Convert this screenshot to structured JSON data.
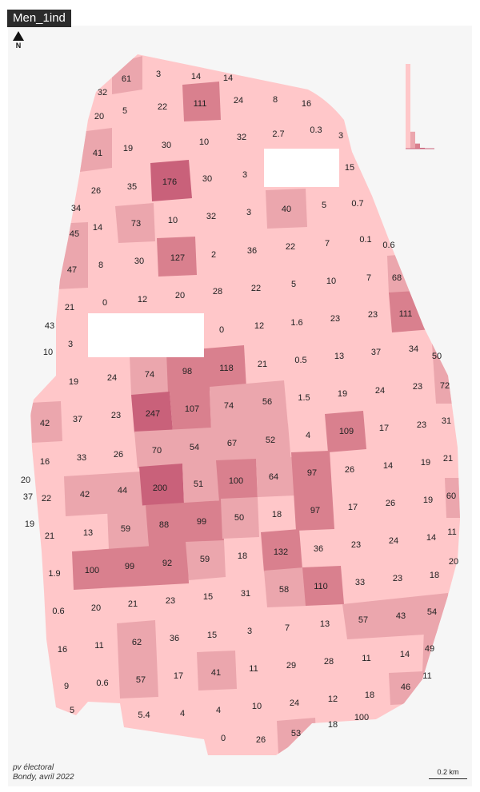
{
  "map": {
    "title": "Men_1ind",
    "north_label": "N",
    "source_line1": "pv électoral",
    "source_line2": "Bondy, avril 2022",
    "scale_label": "0.2 km",
    "colors": {
      "background": "#f6f6f6",
      "class_low": "#ffc7c9",
      "class_mid": "#eba6ad",
      "class_high": "#d9808e",
      "class_top": "#c9617a",
      "holes": "#ffffff",
      "title_bg": "#2b2b2b"
    },
    "legend_histogram": {
      "class_counts": [
        1,
        0.2,
        0.06,
        0.01
      ]
    }
  },
  "cells": [
    {
      "v": "61"
    },
    {
      "v": "3"
    },
    {
      "v": "14"
    },
    {
      "v": "14"
    },
    {
      "v": "32"
    },
    {
      "v": "5"
    },
    {
      "v": "22"
    },
    {
      "v": "111"
    },
    {
      "v": "24"
    },
    {
      "v": "8"
    },
    {
      "v": "16"
    },
    {
      "v": "20"
    },
    {
      "v": "41"
    },
    {
      "v": "19"
    },
    {
      "v": "30"
    },
    {
      "v": "10"
    },
    {
      "v": "32"
    },
    {
      "v": "2.7"
    },
    {
      "v": "0.3"
    },
    {
      "v": "3"
    },
    {
      "v": "15"
    },
    {
      "v": "26"
    },
    {
      "v": "35"
    },
    {
      "v": "176"
    },
    {
      "v": "30"
    },
    {
      "v": "3"
    },
    {
      "v": "34"
    },
    {
      "v": "14"
    },
    {
      "v": "73"
    },
    {
      "v": "10"
    },
    {
      "v": "32"
    },
    {
      "v": "3"
    },
    {
      "v": "40"
    },
    {
      "v": "5"
    },
    {
      "v": "0.7"
    },
    {
      "v": "45"
    },
    {
      "v": "47"
    },
    {
      "v": "8"
    },
    {
      "v": "30"
    },
    {
      "v": "127"
    },
    {
      "v": "2"
    },
    {
      "v": "36"
    },
    {
      "v": "22"
    },
    {
      "v": "7"
    },
    {
      "v": "0.1"
    },
    {
      "v": "0.6"
    },
    {
      "v": "68"
    },
    {
      "v": "21"
    },
    {
      "v": "0"
    },
    {
      "v": "12"
    },
    {
      "v": "20"
    },
    {
      "v": "28"
    },
    {
      "v": "22"
    },
    {
      "v": "5"
    },
    {
      "v": "10"
    },
    {
      "v": "7"
    },
    {
      "v": "111"
    },
    {
      "v": "43"
    },
    {
      "v": "3"
    },
    {
      "v": "0"
    },
    {
      "v": "12"
    },
    {
      "v": "1.6"
    },
    {
      "v": "23"
    },
    {
      "v": "23"
    },
    {
      "v": "10"
    },
    {
      "v": "74"
    },
    {
      "v": "98"
    },
    {
      "v": "118"
    },
    {
      "v": "21"
    },
    {
      "v": "0.5"
    },
    {
      "v": "13"
    },
    {
      "v": "37"
    },
    {
      "v": "34"
    },
    {
      "v": "50"
    },
    {
      "v": "19"
    },
    {
      "v": "24"
    },
    {
      "v": "1.5"
    },
    {
      "v": "19"
    },
    {
      "v": "24"
    },
    {
      "v": "23"
    },
    {
      "v": "72"
    },
    {
      "v": "42"
    },
    {
      "v": "37"
    },
    {
      "v": "23"
    },
    {
      "v": "247"
    },
    {
      "v": "107"
    },
    {
      "v": "74"
    },
    {
      "v": "56"
    },
    {
      "v": "4"
    },
    {
      "v": "109"
    },
    {
      "v": "17"
    },
    {
      "v": "23"
    },
    {
      "v": "31"
    },
    {
      "v": "16"
    },
    {
      "v": "33"
    },
    {
      "v": "26"
    },
    {
      "v": "70"
    },
    {
      "v": "54"
    },
    {
      "v": "67"
    },
    {
      "v": "52"
    },
    {
      "v": "26"
    },
    {
      "v": "14"
    },
    {
      "v": "19"
    },
    {
      "v": "21"
    },
    {
      "v": "20"
    },
    {
      "v": "37"
    },
    {
      "v": "22"
    },
    {
      "v": "42"
    },
    {
      "v": "44"
    },
    {
      "v": "200"
    },
    {
      "v": "51"
    },
    {
      "v": "100"
    },
    {
      "v": "64"
    },
    {
      "v": "97"
    },
    {
      "v": "60"
    },
    {
      "v": "19"
    },
    {
      "v": "21"
    },
    {
      "v": "13"
    },
    {
      "v": "59"
    },
    {
      "v": "88"
    },
    {
      "v": "99"
    },
    {
      "v": "50"
    },
    {
      "v": "18"
    },
    {
      "v": "97"
    },
    {
      "v": "17"
    },
    {
      "v": "26"
    },
    {
      "v": "19"
    },
    {
      "v": "11"
    },
    {
      "v": "1.9"
    },
    {
      "v": "100"
    },
    {
      "v": "99"
    },
    {
      "v": "92"
    },
    {
      "v": "59"
    },
    {
      "v": "18"
    },
    {
      "v": "132"
    },
    {
      "v": "36"
    },
    {
      "v": "23"
    },
    {
      "v": "24"
    },
    {
      "v": "14"
    },
    {
      "v": "20"
    },
    {
      "v": "0.6"
    },
    {
      "v": "20"
    },
    {
      "v": "21"
    },
    {
      "v": "23"
    },
    {
      "v": "15"
    },
    {
      "v": "31"
    },
    {
      "v": "58"
    },
    {
      "v": "110"
    },
    {
      "v": "33"
    },
    {
      "v": "23"
    },
    {
      "v": "18"
    },
    {
      "v": "16"
    },
    {
      "v": "11"
    },
    {
      "v": "62"
    },
    {
      "v": "36"
    },
    {
      "v": "15"
    },
    {
      "v": "3"
    },
    {
      "v": "7"
    },
    {
      "v": "13"
    },
    {
      "v": "57"
    },
    {
      "v": "43"
    },
    {
      "v": "54"
    },
    {
      "v": "49"
    },
    {
      "v": "9"
    },
    {
      "v": "0.6"
    },
    {
      "v": "57"
    },
    {
      "v": "17"
    },
    {
      "v": "41"
    },
    {
      "v": "11"
    },
    {
      "v": "29"
    },
    {
      "v": "28"
    },
    {
      "v": "11"
    },
    {
      "v": "14"
    },
    {
      "v": "11"
    },
    {
      "v": "46"
    },
    {
      "v": "5"
    },
    {
      "v": "5.4"
    },
    {
      "v": "4"
    },
    {
      "v": "4"
    },
    {
      "v": "10"
    },
    {
      "v": "24"
    },
    {
      "v": "12"
    },
    {
      "v": "18"
    },
    {
      "v": "18"
    },
    {
      "v": "100"
    },
    {
      "v": "0"
    },
    {
      "v": "26"
    },
    {
      "v": "53"
    }
  ]
}
